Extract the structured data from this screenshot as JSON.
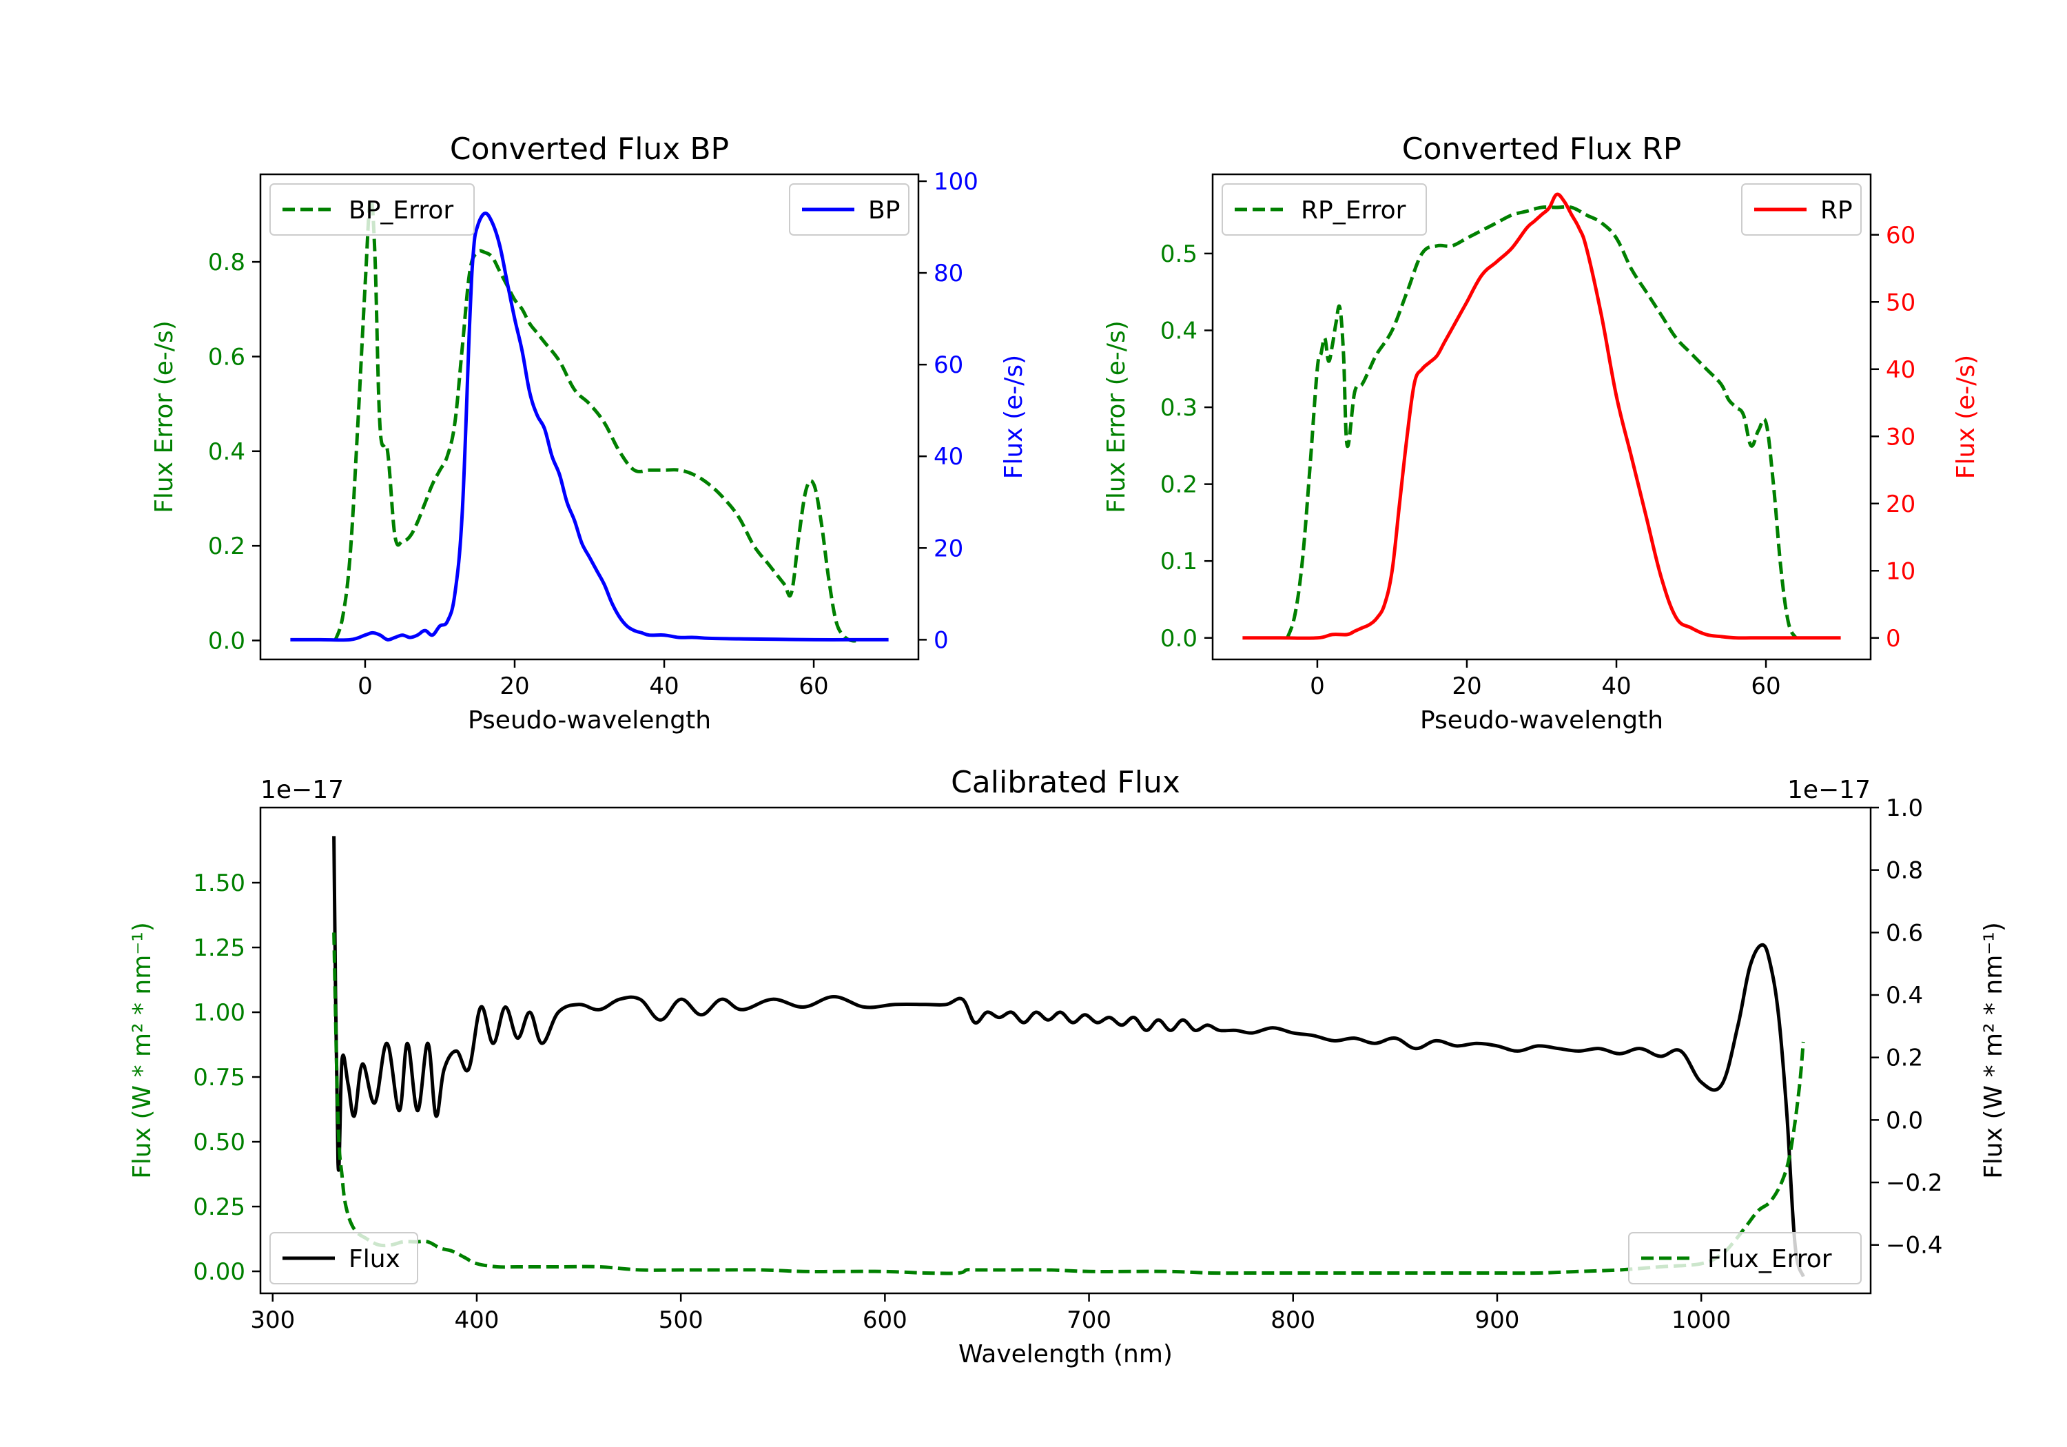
{
  "colors": {
    "error": "#008000",
    "bp": "#0000ff",
    "rp": "#ff0000",
    "flux": "#000000",
    "axis": "#000000"
  },
  "chart_data": [
    {
      "id": "bp",
      "type": "line",
      "title": "Converted Flux BP",
      "xlabel": "Pseudo-wavelength",
      "ylabel_left": "Flux Error (e-/s)",
      "ylabel_right": "Flux (e-/s)",
      "xlim": [
        -14,
        74
      ],
      "ylim_left": [
        -0.04,
        0.985
      ],
      "ylim_right": [
        -4.3,
        101.5
      ],
      "xticks": [
        0,
        20,
        40,
        60
      ],
      "yticks_left": [
        0.0,
        0.2,
        0.4,
        0.6,
        0.8
      ],
      "yticks_right": [
        0,
        20,
        40,
        60,
        80,
        100
      ],
      "legend_left": "BP_Error",
      "legend_right": "BP",
      "series": [
        {
          "name": "BP_Error",
          "axis": "left",
          "style": "dashed",
          "color_key": "error",
          "x": [
            -4,
            -3,
            -2,
            -1,
            0,
            0.7,
            1.3,
            2,
            3,
            4,
            5,
            6,
            7,
            8,
            9,
            10,
            11,
            12,
            13,
            14,
            15,
            16,
            17,
            18,
            19,
            20,
            21,
            22,
            23,
            24,
            26,
            28,
            30,
            32,
            34,
            36,
            38,
            40,
            42,
            44,
            46,
            48,
            50,
            52,
            54,
            56,
            57,
            58,
            59,
            60,
            61,
            62,
            63,
            64,
            65,
            66
          ],
          "y": [
            0.0,
            0.05,
            0.18,
            0.45,
            0.75,
            0.93,
            0.82,
            0.45,
            0.4,
            0.22,
            0.21,
            0.22,
            0.25,
            0.29,
            0.33,
            0.36,
            0.39,
            0.46,
            0.62,
            0.78,
            0.82,
            0.82,
            0.81,
            0.78,
            0.75,
            0.72,
            0.7,
            0.67,
            0.65,
            0.63,
            0.59,
            0.53,
            0.5,
            0.46,
            0.4,
            0.36,
            0.36,
            0.36,
            0.36,
            0.35,
            0.33,
            0.3,
            0.26,
            0.2,
            0.16,
            0.12,
            0.1,
            0.22,
            0.32,
            0.33,
            0.25,
            0.13,
            0.04,
            0.01,
            0.0,
            0.0
          ]
        },
        {
          "name": "BP",
          "axis": "right",
          "style": "solid",
          "color_key": "bp",
          "x": [
            -10,
            -6,
            -2,
            0,
            1,
            2,
            3,
            4,
            5,
            6,
            7,
            8,
            9,
            10,
            11,
            12,
            13,
            14,
            14.5,
            15,
            16,
            17,
            18,
            19,
            20,
            21,
            22,
            23,
            24,
            25,
            26,
            27,
            28,
            29,
            30,
            31,
            32,
            33,
            34,
            35,
            36,
            37,
            38,
            40,
            42,
            44,
            46,
            50,
            55,
            60,
            65,
            70
          ],
          "y": [
            0,
            0,
            0,
            1,
            1.5,
            1,
            0,
            0.5,
            1,
            0.5,
            1,
            2,
            1,
            3,
            4,
            10,
            28,
            70,
            85,
            90,
            93,
            91,
            86,
            78,
            70,
            63,
            54,
            49,
            46,
            40,
            36,
            30,
            26,
            21,
            18,
            15,
            12,
            8,
            5,
            3,
            2,
            1.5,
            1,
            1,
            0.5,
            0.5,
            0.3,
            0.2,
            0.1,
            0,
            0,
            0
          ]
        }
      ]
    },
    {
      "id": "rp",
      "type": "line",
      "title": "Converted Flux RP",
      "xlabel": "Pseudo-wavelength",
      "ylabel_left": "Flux Error (e-/s)",
      "ylabel_right": "Flux (e-/s)",
      "xlim": [
        -14,
        74
      ],
      "ylim_left": [
        -0.028,
        0.603
      ],
      "ylim_right": [
        -3.2,
        69.0
      ],
      "xticks": [
        0,
        20,
        40,
        60
      ],
      "yticks_left": [
        0.0,
        0.1,
        0.2,
        0.3,
        0.4,
        0.5
      ],
      "yticks_right": [
        0,
        10,
        20,
        30,
        40,
        50,
        60
      ],
      "legend_left": "RP_Error",
      "legend_right": "RP",
      "series": [
        {
          "name": "RP_Error",
          "axis": "left",
          "style": "dashed",
          "color_key": "error",
          "x": [
            -4,
            -3,
            -2,
            -1,
            0,
            0.5,
            1,
            1.5,
            2,
            2.5,
            3,
            3.5,
            4,
            5,
            6,
            7,
            8,
            10,
            12,
            14,
            16,
            18,
            20,
            22,
            24,
            26,
            28,
            30,
            32,
            34,
            36,
            38,
            40,
            42,
            44,
            46,
            48,
            50,
            52,
            54,
            55,
            56,
            57,
            58,
            59,
            60,
            61,
            62,
            63,
            64
          ],
          "y": [
            0.0,
            0.03,
            0.1,
            0.22,
            0.35,
            0.37,
            0.39,
            0.36,
            0.38,
            0.41,
            0.43,
            0.37,
            0.25,
            0.32,
            0.33,
            0.35,
            0.37,
            0.4,
            0.45,
            0.5,
            0.51,
            0.51,
            0.52,
            0.53,
            0.54,
            0.55,
            0.555,
            0.56,
            0.56,
            0.56,
            0.55,
            0.54,
            0.52,
            0.48,
            0.45,
            0.42,
            0.39,
            0.37,
            0.35,
            0.33,
            0.31,
            0.3,
            0.29,
            0.25,
            0.27,
            0.28,
            0.2,
            0.09,
            0.02,
            0.0
          ]
        },
        {
          "name": "RP",
          "axis": "right",
          "style": "solid",
          "color_key": "rp",
          "x": [
            -10,
            -5,
            0,
            2,
            4,
            5,
            6,
            7,
            8,
            9,
            10,
            11,
            12,
            13,
            14,
            15,
            16,
            17,
            18,
            19,
            20,
            22,
            24,
            26,
            28,
            29,
            30,
            31,
            32,
            33,
            34,
            35,
            36,
            38,
            40,
            42,
            44,
            46,
            48,
            50,
            52,
            54,
            56,
            58,
            60,
            62,
            65,
            70
          ],
          "y": [
            0,
            0,
            0,
            0.5,
            0.5,
            1,
            1.5,
            2,
            3,
            5,
            10,
            20,
            30,
            38,
            40,
            41,
            42,
            44,
            46,
            48,
            50,
            54,
            56,
            58,
            61,
            62,
            63,
            64,
            66,
            65,
            63,
            61,
            58,
            48,
            36,
            27,
            18,
            9,
            3,
            1.5,
            0.5,
            0.2,
            0,
            0,
            0,
            0,
            0,
            0
          ]
        }
      ]
    },
    {
      "id": "cal",
      "type": "line",
      "title": "Calibrated Flux",
      "xlabel": "Wavelength (nm)",
      "ylabel_left": "Flux (W * m² * nm⁻¹)",
      "ylabel_right": "Flux (W * m² * nm⁻¹)",
      "offset_left": "1e−17",
      "offset_right": "1e−17",
      "xlim": [
        294,
        1083
      ],
      "ylim_left": [
        -0.085,
        1.79
      ],
      "ylim_right": [
        -0.555,
        1.0
      ],
      "xticks": [
        300,
        400,
        500,
        600,
        700,
        800,
        900,
        1000
      ],
      "yticks_left": [
        0.0,
        0.25,
        0.5,
        0.75,
        1.0,
        1.25,
        1.5
      ],
      "yticks_left_labels": [
        "0.00",
        "0.25",
        "0.50",
        "0.75",
        "1.00",
        "1.25",
        "1.50"
      ],
      "yticks_right": [
        -0.4,
        -0.2,
        0.0,
        0.2,
        0.4,
        0.6,
        0.8,
        1.0
      ],
      "yticks_right_labels": [
        "−0.4",
        "−0.2",
        "0.0",
        "0.2",
        "0.4",
        "0.6",
        "0.8",
        "1.0"
      ],
      "legend_left": "Flux",
      "legend_right": "Flux_Error",
      "series": [
        {
          "name": "Flux",
          "axis": "left",
          "style": "solid",
          "color_key": "flux",
          "x": [
            330,
            332,
            334,
            337,
            340,
            344,
            350,
            356,
            362,
            366,
            371,
            376,
            380,
            384,
            390,
            396,
            402,
            408,
            414,
            420,
            426,
            432,
            440,
            450,
            460,
            470,
            480,
            490,
            500,
            510,
            520,
            530,
            545,
            560,
            575,
            590,
            605,
            620,
            630,
            638,
            644,
            650,
            656,
            662,
            668,
            674,
            680,
            686,
            692,
            698,
            704,
            710,
            716,
            722,
            728,
            734,
            740,
            746,
            752,
            758,
            764,
            772,
            780,
            790,
            800,
            810,
            820,
            830,
            840,
            850,
            860,
            870,
            880,
            890,
            900,
            910,
            920,
            930,
            940,
            950,
            960,
            970,
            980,
            990,
            1000,
            1010,
            1018,
            1024,
            1030,
            1034,
            1038,
            1042,
            1046,
            1050
          ],
          "y": [
            1.68,
            0.42,
            0.82,
            0.72,
            0.6,
            0.8,
            0.65,
            0.88,
            0.62,
            0.88,
            0.62,
            0.88,
            0.6,
            0.78,
            0.85,
            0.78,
            1.02,
            0.88,
            1.02,
            0.9,
            1.0,
            0.88,
            1.0,
            1.03,
            1.01,
            1.05,
            1.05,
            0.97,
            1.05,
            0.99,
            1.05,
            1.01,
            1.05,
            1.02,
            1.06,
            1.02,
            1.03,
            1.03,
            1.03,
            1.05,
            0.96,
            1.0,
            0.98,
            1.0,
            0.96,
            1.0,
            0.97,
            1.0,
            0.96,
            0.99,
            0.96,
            0.98,
            0.95,
            0.98,
            0.93,
            0.97,
            0.93,
            0.97,
            0.93,
            0.95,
            0.93,
            0.93,
            0.92,
            0.94,
            0.92,
            0.91,
            0.89,
            0.9,
            0.88,
            0.9,
            0.86,
            0.89,
            0.87,
            0.88,
            0.87,
            0.85,
            0.87,
            0.86,
            0.85,
            0.86,
            0.84,
            0.86,
            0.83,
            0.85,
            0.73,
            0.72,
            0.95,
            1.18,
            1.26,
            1.18,
            0.98,
            0.6,
            0.1,
            -0.02
          ]
        },
        {
          "name": "Flux_Error",
          "axis": "right",
          "style": "dashed",
          "color_key": "error",
          "x": [
            330,
            332,
            334,
            336,
            340,
            346,
            352,
            358,
            364,
            370,
            376,
            382,
            388,
            394,
            400,
            410,
            420,
            440,
            460,
            480,
            500,
            520,
            540,
            560,
            580,
            600,
            620,
            636,
            640,
            644,
            660,
            680,
            700,
            720,
            740,
            760,
            780,
            800,
            820,
            840,
            860,
            880,
            900,
            920,
            940,
            960,
            980,
            1000,
            1010,
            1016,
            1022,
            1028,
            1034,
            1040,
            1044,
            1048,
            1050
          ],
          "y": [
            0.6,
            0.0,
            -0.18,
            -0.28,
            -0.35,
            -0.38,
            -0.4,
            -0.4,
            -0.39,
            -0.39,
            -0.39,
            -0.41,
            -0.42,
            -0.44,
            -0.46,
            -0.47,
            -0.47,
            -0.47,
            -0.47,
            -0.48,
            -0.48,
            -0.48,
            -0.48,
            -0.485,
            -0.485,
            -0.485,
            -0.49,
            -0.49,
            -0.48,
            -0.48,
            -0.48,
            -0.48,
            -0.485,
            -0.485,
            -0.485,
            -0.49,
            -0.49,
            -0.49,
            -0.49,
            -0.49,
            -0.49,
            -0.49,
            -0.49,
            -0.49,
            -0.485,
            -0.48,
            -0.47,
            -0.46,
            -0.43,
            -0.39,
            -0.34,
            -0.29,
            -0.26,
            -0.19,
            -0.09,
            0.1,
            0.25
          ]
        }
      ]
    }
  ]
}
